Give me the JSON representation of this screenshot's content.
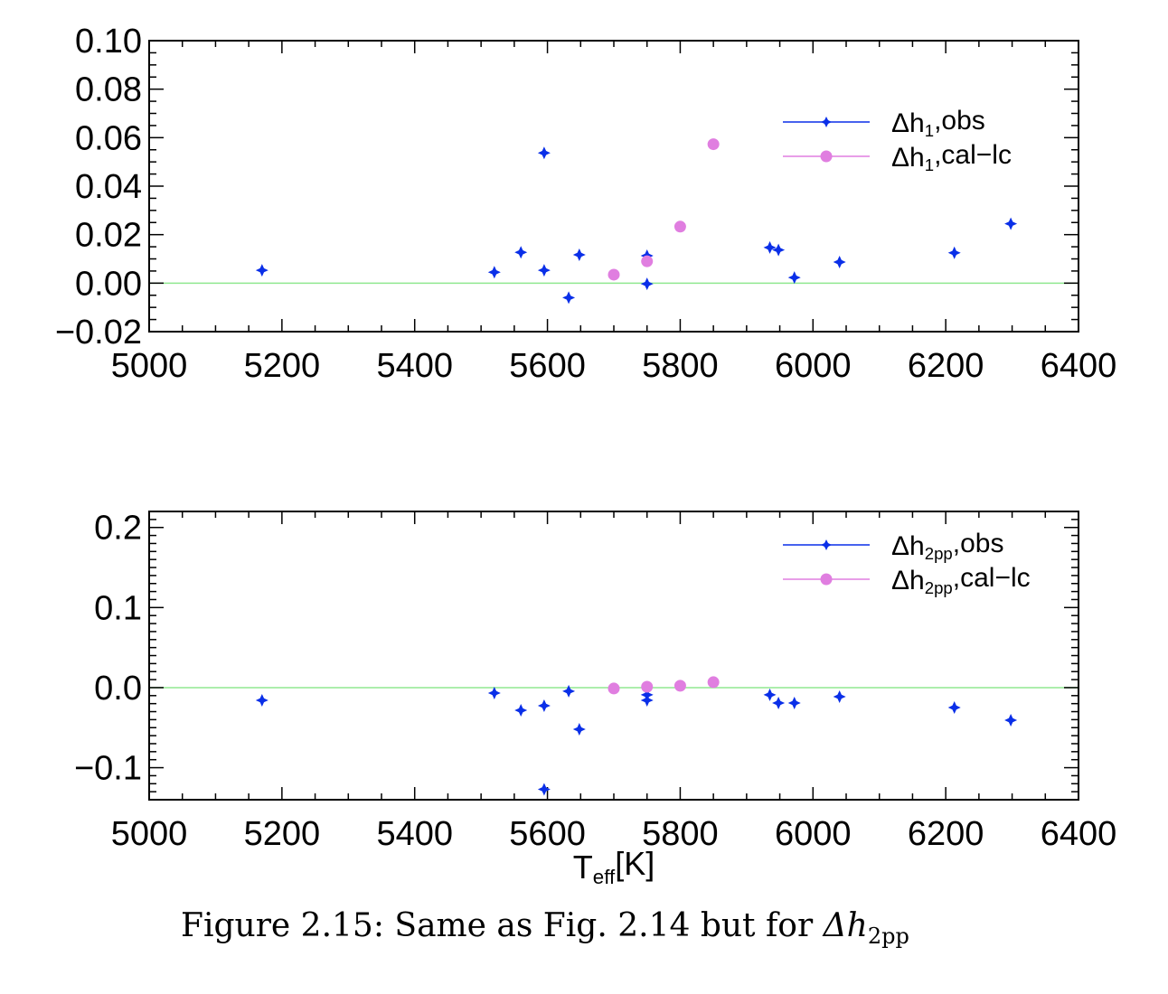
{
  "chart_data": [
    {
      "type": "scatter",
      "xlim": [
        5000,
        6400
      ],
      "ylim": [
        -0.02,
        0.1
      ],
      "x_ticks": [
        5000,
        5200,
        5400,
        5600,
        5800,
        6000,
        6200,
        6400
      ],
      "x_tick_labels": [
        "5000",
        "5200",
        "5400",
        "5600",
        "5800",
        "6000",
        "6200",
        "6400"
      ],
      "y_ticks": [
        -0.02,
        0.0,
        0.02,
        0.04,
        0.06,
        0.08,
        0.1
      ],
      "y_tick_labels": [
        "−0.02",
        "0.00",
        "0.02",
        "0.04",
        "0.06",
        "0.08",
        "0.10"
      ],
      "reference_line": {
        "y": 0.0,
        "color": "#90e890"
      },
      "legend_position": "top-right",
      "series": [
        {
          "name": "Δh₁,obs",
          "legend": {
            "base": "Δh",
            "sub": "1",
            "suffix": ",obs"
          },
          "marker": "star",
          "color": "#0a2fe8",
          "x": [
            5170,
            5520,
            5560,
            5595,
            5595,
            5632,
            5648,
            5750,
            5750,
            5935,
            5948,
            5972,
            6040,
            6213,
            6298
          ],
          "y": [
            0.0053,
            0.0045,
            0.0127,
            0.0053,
            0.0537,
            -0.006,
            0.0117,
            0.0113,
            -0.0003,
            0.0147,
            0.0137,
            0.0023,
            0.0087,
            0.0125,
            0.0245
          ]
        },
        {
          "name": "Δh₁,cal−lc",
          "legend": {
            "base": "Δh",
            "sub": "1",
            "suffix": ",cal−lc"
          },
          "marker": "circle",
          "color": "#e07ee0",
          "x": [
            5700,
            5750,
            5800,
            5850
          ],
          "y": [
            0.0035,
            0.009,
            0.0233,
            0.0573
          ]
        }
      ]
    },
    {
      "type": "scatter",
      "xlabel": {
        "base": "T",
        "sub": "eff",
        "suffix": "[K]"
      },
      "xlim": [
        5000,
        6400
      ],
      "ylim": [
        -0.14,
        0.22
      ],
      "x_ticks": [
        5000,
        5200,
        5400,
        5600,
        5800,
        6000,
        6200,
        6400
      ],
      "x_tick_labels": [
        "5000",
        "5200",
        "5400",
        "5600",
        "5800",
        "6000",
        "6200",
        "6400"
      ],
      "y_ticks": [
        -0.1,
        0.0,
        0.1,
        0.2
      ],
      "y_tick_labels": [
        "−0.1",
        "0.0",
        "0.1",
        "0.2"
      ],
      "reference_line": {
        "y": 0.0,
        "color": "#90e890"
      },
      "legend_position": "top-right",
      "series": [
        {
          "name": "Δh₂ₚₚ,obs",
          "legend": {
            "base": "Δh",
            "sub": "2pp",
            "suffix": ",obs"
          },
          "marker": "star",
          "color": "#0a2fe8",
          "x": [
            5170,
            5520,
            5560,
            5595,
            5595,
            5632,
            5648,
            5750,
            5750,
            5935,
            5948,
            5972,
            6040,
            6213,
            6298
          ],
          "y": [
            -0.0158,
            -0.0068,
            -0.0283,
            -0.0226,
            -0.127,
            -0.0045,
            -0.052,
            -0.009,
            -0.0158,
            -0.009,
            -0.0192,
            -0.0192,
            -0.0113,
            -0.0249,
            -0.0407
          ]
        },
        {
          "name": "Δh₂ₚₚ,cal−lc",
          "legend": {
            "base": "Δh",
            "sub": "2pp",
            "suffix": ",cal−lc"
          },
          "marker": "circle",
          "color": "#e07ee0",
          "x": [
            5700,
            5750,
            5800,
            5850
          ],
          "y": [
            -0.0011,
            0.0011,
            0.0023,
            0.0068
          ]
        }
      ]
    }
  ],
  "caption": {
    "prefix": "Figure 2.15: Same as Fig. 2.14 but for ",
    "symbol": "Δh",
    "sub": "2pp"
  }
}
